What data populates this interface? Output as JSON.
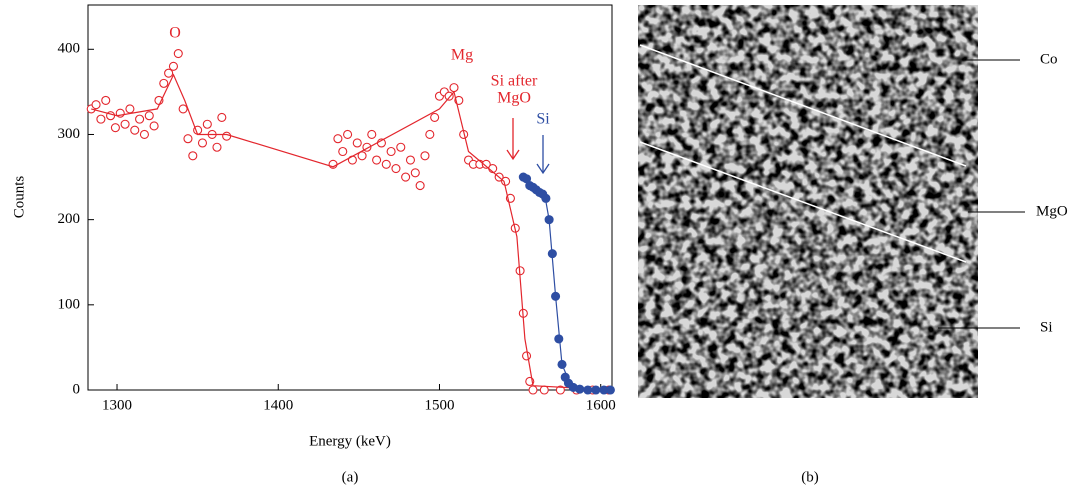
{
  "chart_data": {
    "type": "scatter",
    "x_label": "Energy (keV)",
    "y_label": "Counts",
    "xlim": [
      1282,
      1607
    ],
    "ylim": [
      0,
      452
    ],
    "xticks": [
      1300,
      1400,
      1500,
      1600
    ],
    "yticks": [
      0,
      100,
      200,
      300,
      400
    ],
    "series": [
      {
        "color": "#e3262d",
        "marker": "open",
        "x": [
          1284,
          1287,
          1290,
          1293,
          1296,
          1299,
          1302,
          1305,
          1308,
          1311,
          1314,
          1317,
          1320,
          1323,
          1326,
          1329,
          1332,
          1335,
          1338,
          1341,
          1344,
          1347,
          1350,
          1353,
          1356,
          1359,
          1362,
          1365,
          1368,
          1434,
          1437,
          1440,
          1443,
          1446,
          1449,
          1452,
          1455,
          1458,
          1461,
          1464,
          1467,
          1470,
          1473,
          1476,
          1479,
          1482,
          1485,
          1488,
          1491,
          1494,
          1497,
          1500,
          1503,
          1506,
          1509,
          1512,
          1515,
          1518,
          1521,
          1525,
          1529,
          1533,
          1537,
          1541,
          1544,
          1547,
          1550,
          1552,
          1554,
          1556,
          1558,
          1565,
          1575,
          1585,
          1595,
          1605
        ],
        "values": [
          330,
          335,
          318,
          340,
          322,
          308,
          325,
          312,
          330,
          305,
          318,
          300,
          322,
          310,
          340,
          360,
          372,
          380,
          395,
          330,
          295,
          275,
          305,
          290,
          312,
          300,
          285,
          320,
          298,
          265,
          295,
          280,
          300,
          270,
          290,
          275,
          285,
          300,
          270,
          290,
          265,
          280,
          260,
          285,
          250,
          270,
          255,
          240,
          275,
          300,
          320,
          345,
          350,
          345,
          355,
          340,
          300,
          270,
          265,
          265,
          265,
          260,
          250,
          245,
          225,
          190,
          140,
          90,
          40,
          10,
          0,
          0,
          0,
          0,
          0,
          0
        ]
      },
      {
        "color": "#e3262d",
        "marker": "none",
        "x": [
          1284,
          1300,
          1325,
          1335,
          1342,
          1350,
          1368,
          1434,
          1500,
          1509,
          1518,
          1540,
          1548,
          1553,
          1558,
          1607
        ],
        "values": [
          330,
          322,
          330,
          370,
          340,
          300,
          300,
          262,
          330,
          350,
          280,
          245,
          180,
          60,
          5,
          0
        ]
      },
      {
        "color": "#2e4ea3",
        "marker": "filled",
        "x": [
          1552,
          1554,
          1556,
          1558,
          1560,
          1562,
          1564,
          1566,
          1568,
          1570,
          1572,
          1574,
          1576,
          1578,
          1580,
          1583,
          1587,
          1592,
          1597,
          1602,
          1606
        ],
        "values": [
          250,
          248,
          240,
          238,
          235,
          232,
          230,
          225,
          200,
          160,
          110,
          60,
          30,
          15,
          8,
          3,
          1,
          0,
          0,
          0,
          0
        ]
      },
      {
        "color": "#2e4ea3",
        "marker": "none",
        "x": [
          1552,
          1565,
          1568,
          1572,
          1576,
          1582,
          1607
        ],
        "values": [
          250,
          232,
          200,
          110,
          30,
          3,
          0
        ]
      }
    ],
    "annotations": [
      {
        "text": "O",
        "color": "#e3262d"
      },
      {
        "text": "Mg",
        "color": "#e3262d"
      },
      {
        "text": "Si after",
        "color": "#e3262d"
      },
      {
        "text": "MgO",
        "color": "#e3262d"
      },
      {
        "text": "Si",
        "color": "#2e4ea3"
      }
    ]
  },
  "image_labels": [
    "Co",
    "MgO",
    "Si"
  ],
  "captions": [
    "(a)",
    "(b)"
  ]
}
